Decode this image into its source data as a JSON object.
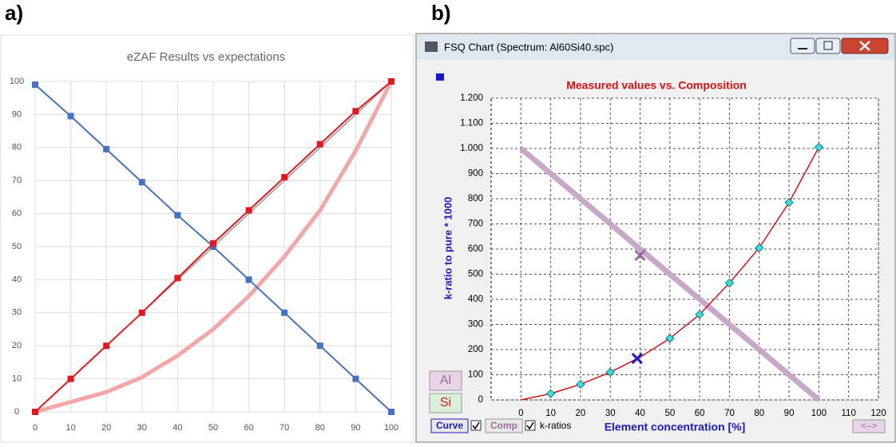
{
  "chart_data": [
    {
      "type": "line",
      "panel_label": "a)",
      "title": "eZAF Results vs expectations",
      "x": [
        0,
        10,
        20,
        30,
        40,
        50,
        60,
        70,
        80,
        90,
        100
      ],
      "xlim": [
        0,
        100
      ],
      "xticks": [
        0,
        10,
        20,
        30,
        40,
        50,
        60,
        70,
        80,
        90,
        100
      ],
      "ylim": [
        0,
        100
      ],
      "yticks": [
        0,
        10,
        20,
        30,
        40,
        50,
        60,
        70,
        80,
        90,
        100
      ],
      "grid": true,
      "grid_style": "solid",
      "series": [
        {
          "color": "#f4a6a6",
          "width": 5,
          "line": true,
          "values": [
            0,
            3,
            6,
            10.5,
            17,
            25,
            35,
            47,
            61,
            79,
            100
          ]
        },
        {
          "color": "#9a9a9a",
          "width": 1.5,
          "line": true,
          "values": [
            0,
            10,
            20,
            30,
            40,
            50,
            60,
            70,
            80,
            90,
            100
          ]
        },
        {
          "color": "#4472c4",
          "width": 2,
          "line": true,
          "marker": "square",
          "values": [
            99,
            89.5,
            79.5,
            69.5,
            59.5,
            50,
            40,
            30,
            20,
            10,
            0
          ]
        },
        {
          "color": "#e8161b",
          "width": 2,
          "line": true,
          "marker": "square",
          "values": [
            0,
            10,
            20,
            30,
            40.5,
            51,
            61,
            71,
            81,
            91,
            100
          ]
        }
      ]
    },
    {
      "type": "line",
      "panel_label": "b)",
      "window_title": "FSQ Chart (Spectrum: Al60Si40.spc)",
      "title": "Measured values vs. Composition",
      "xlabel": "Element concentration [%]",
      "ylabel": "k-ratio to pure * 1000",
      "buttons": [
        "Al",
        "Si"
      ],
      "controls": [
        "Curve",
        "Comp",
        "k-ratios"
      ],
      "scroll": "<-->",
      "xlim": [
        -10,
        120
      ],
      "xticks": [
        0,
        10,
        20,
        30,
        40,
        50,
        60,
        70,
        80,
        90,
        100,
        110,
        120
      ],
      "ylim": [
        0,
        1200
      ],
      "yticks": [
        0,
        100,
        200,
        300,
        400,
        500,
        600,
        700,
        800,
        900,
        {
          "value": 1000,
          "label": "1.000"
        },
        {
          "value": 1100,
          "label": "1.100"
        },
        {
          "value": 1200,
          "label": "1.200"
        }
      ],
      "grid": true,
      "grid_style": "dashed",
      "series": [
        {
          "color": "#c8a8c8",
          "width": 7,
          "line": true,
          "x": [
            0,
            100
          ],
          "values": [
            1000,
            0
          ]
        },
        {
          "color": "#e01010",
          "width": 1.5,
          "line": true,
          "x": [
            0,
            10,
            20,
            30,
            40,
            50,
            60,
            70,
            80,
            90,
            100
          ],
          "values": [
            0,
            25,
            62,
            110,
            170,
            245,
            340,
            465,
            605,
            785,
            1005
          ]
        },
        {
          "color": "#33e0e0",
          "marker": "diamond",
          "x": [
            10,
            20,
            30,
            50,
            60,
            70,
            80,
            90,
            100
          ],
          "values": [
            25,
            62,
            110,
            245,
            340,
            465,
            605,
            785,
            1005
          ]
        },
        {
          "color": "#9c6a9c",
          "marker": "x",
          "x": [
            40
          ],
          "values": [
            575
          ]
        },
        {
          "color": "#1a1acc",
          "marker": "x",
          "x": [
            39
          ],
          "values": [
            165
          ]
        }
      ]
    }
  ]
}
